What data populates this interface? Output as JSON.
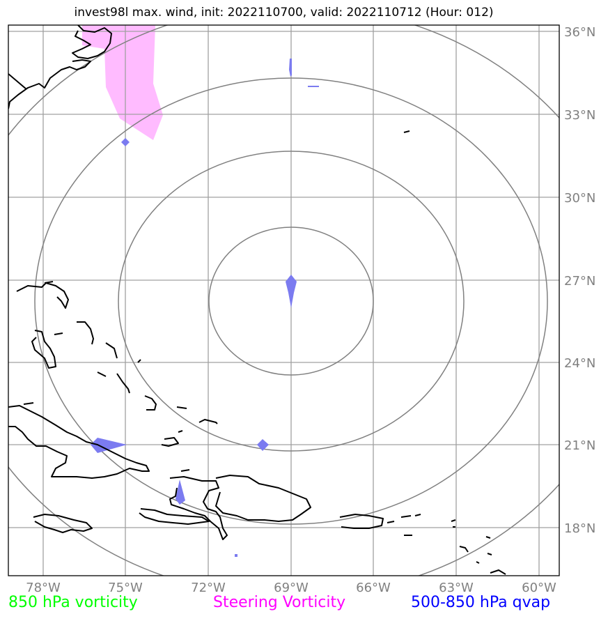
{
  "title": "invest98l max. wind, init: 2022110700, valid: 2022110712 (Hour: 012)",
  "legend": {
    "vorticity_850": "850 hPa vorticity",
    "steering": "Steering Vorticity",
    "qvap": "500-850 hPa qvap"
  },
  "colors": {
    "vorticity_850": "#00ff00",
    "steering": "#ff00ff",
    "steering_fill": "#ffbbff",
    "qvap": "#0000ff",
    "qvap_fill": "#7b7bf0",
    "grid": "#a0a0a0",
    "range_rings": "#808080",
    "coast": "#000000"
  },
  "axes": {
    "lat_labels": [
      "36°N",
      "33°N",
      "30°N",
      "27°N",
      "24°N",
      "21°N",
      "18°N"
    ],
    "lon_labels": [
      "78°W",
      "75°W",
      "72°W",
      "69°W",
      "66°W",
      "63°W",
      "60°W"
    ]
  }
}
